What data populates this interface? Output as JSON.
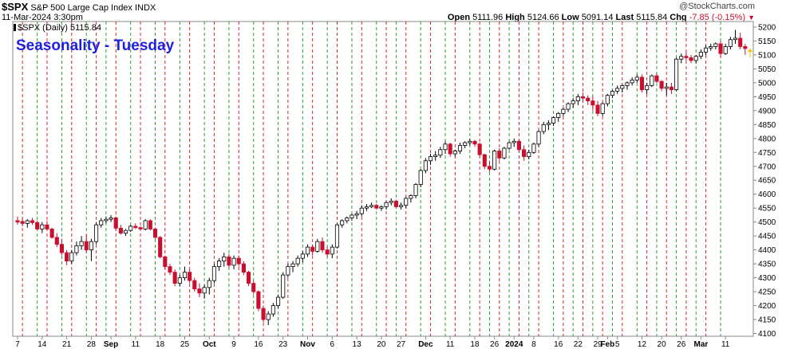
{
  "header": {
    "symbol": "$SPX",
    "name": "S&P 500 Large Cap Index",
    "exchange": "INDX",
    "date": "11-Mar-2024 3:30pm",
    "watermark": "@StockCharts.com",
    "open_label": "Open",
    "open": "5111.96",
    "high_label": "High",
    "high": "5124.66",
    "low_label": "Low",
    "low": "5091.14",
    "last_label": "Last",
    "last": "5115.84",
    "chg_label": "Chg",
    "chg": "-7.85 (-0.15%)"
  },
  "chart_data": {
    "type": "candlestick",
    "title": "Seasonality - Tuesday",
    "legend": "$SPX (Daily) 5115.84",
    "ylim": [
      4090,
      5220
    ],
    "yticks": [
      4100,
      4150,
      4200,
      4250,
      4300,
      4350,
      4400,
      4450,
      4500,
      4550,
      4600,
      4650,
      4700,
      4750,
      4800,
      4850,
      4900,
      4950,
      5000,
      5050,
      5100,
      5150,
      5200
    ],
    "xticks": [
      "7",
      "14",
      "21",
      "28",
      "Sep",
      "11",
      "18",
      "25",
      "Oct",
      "9",
      "16",
      "23",
      "Nov",
      "6",
      "13",
      "20",
      "27",
      "Dec",
      "11",
      "18",
      "26",
      "2024",
      "8",
      "16",
      "22",
      "29",
      "Feb",
      "5",
      "12",
      "20",
      "26",
      "Mar",
      "11"
    ],
    "xtick_day_index": [
      0,
      5,
      10,
      15,
      19,
      24,
      29,
      34,
      39,
      44,
      49,
      54,
      59,
      64,
      69,
      74,
      78,
      83,
      88,
      93,
      97,
      101,
      105,
      110,
      114,
      118,
      120,
      122,
      127,
      131,
      135,
      139,
      144
    ],
    "vertical_markers": {
      "red_day_index": [
        1,
        6,
        11,
        16,
        20,
        25,
        30,
        35,
        40,
        45,
        50,
        55,
        60,
        65,
        70,
        75,
        79,
        84,
        89,
        94,
        98,
        102,
        106,
        111,
        115,
        119,
        123,
        128,
        132,
        136,
        140
      ],
      "green_day_index": [
        4,
        9,
        14,
        18,
        23,
        28,
        33,
        38,
        43,
        48,
        53,
        58,
        63,
        68,
        73,
        77,
        82,
        87,
        92,
        96,
        100,
        104,
        109,
        113,
        117,
        121,
        126,
        130,
        134,
        138,
        143
      ]
    },
    "ohlc": [
      [
        4505,
        4520,
        4490,
        4500
      ],
      [
        4502,
        4512,
        4485,
        4495
      ],
      [
        4495,
        4510,
        4480,
        4505
      ],
      [
        4505,
        4515,
        4490,
        4498
      ],
      [
        4498,
        4505,
        4470,
        4475
      ],
      [
        4475,
        4500,
        4460,
        4490
      ],
      [
        4490,
        4505,
        4470,
        4475
      ],
      [
        4475,
        4480,
        4440,
        4445
      ],
      [
        4445,
        4460,
        4410,
        4420
      ],
      [
        4420,
        4440,
        4380,
        4390
      ],
      [
        4390,
        4400,
        4345,
        4360
      ],
      [
        4360,
        4400,
        4350,
        4390
      ],
      [
        4390,
        4430,
        4380,
        4415
      ],
      [
        4415,
        4450,
        4400,
        4430
      ],
      [
        4430,
        4455,
        4390,
        4400
      ],
      [
        4400,
        4440,
        4360,
        4430
      ],
      [
        4430,
        4500,
        4420,
        4490
      ],
      [
        4490,
        4515,
        4480,
        4505
      ],
      [
        4505,
        4520,
        4495,
        4510
      ],
      [
        4510,
        4525,
        4500,
        4515
      ],
      [
        4515,
        4520,
        4470,
        4478
      ],
      [
        4478,
        4490,
        4455,
        4460
      ],
      [
        4460,
        4475,
        4450,
        4470
      ],
      [
        4470,
        4490,
        4465,
        4485
      ],
      [
        4485,
        4495,
        4475,
        4480
      ],
      [
        4480,
        4485,
        4470,
        4475
      ],
      [
        4475,
        4510,
        4470,
        4505
      ],
      [
        4505,
        4510,
        4470,
        4475
      ],
      [
        4475,
        4480,
        4440,
        4445
      ],
      [
        4445,
        4450,
        4370,
        4375
      ],
      [
        4375,
        4380,
        4330,
        4340
      ],
      [
        4340,
        4350,
        4310,
        4320
      ],
      [
        4320,
        4330,
        4270,
        4280
      ],
      [
        4280,
        4310,
        4270,
        4300
      ],
      [
        4300,
        4340,
        4290,
        4320
      ],
      [
        4320,
        4330,
        4280,
        4290
      ],
      [
        4290,
        4300,
        4250,
        4260
      ],
      [
        4260,
        4280,
        4230,
        4245
      ],
      [
        4245,
        4275,
        4225,
        4265
      ],
      [
        4265,
        4300,
        4240,
        4290
      ],
      [
        4290,
        4350,
        4280,
        4340
      ],
      [
        4340,
        4370,
        4325,
        4360
      ],
      [
        4360,
        4390,
        4340,
        4375
      ],
      [
        4375,
        4385,
        4335,
        4345
      ],
      [
        4345,
        4380,
        4330,
        4370
      ],
      [
        4370,
        4380,
        4340,
        4350
      ],
      [
        4350,
        4360,
        4310,
        4320
      ],
      [
        4320,
        4325,
        4270,
        4280
      ],
      [
        4280,
        4290,
        4240,
        4250
      ],
      [
        4250,
        4255,
        4180,
        4190
      ],
      [
        4190,
        4200,
        4140,
        4150
      ],
      [
        4150,
        4180,
        4130,
        4170
      ],
      [
        4170,
        4210,
        4160,
        4200
      ],
      [
        4200,
        4240,
        4190,
        4230
      ],
      [
        4230,
        4320,
        4225,
        4310
      ],
      [
        4310,
        4350,
        4300,
        4340
      ],
      [
        4340,
        4360,
        4320,
        4350
      ],
      [
        4350,
        4380,
        4340,
        4370
      ],
      [
        4370,
        4395,
        4355,
        4385
      ],
      [
        4385,
        4420,
        4375,
        4410
      ],
      [
        4410,
        4420,
        4380,
        4395
      ],
      [
        4395,
        4440,
        4390,
        4430
      ],
      [
        4430,
        4445,
        4390,
        4400
      ],
      [
        4400,
        4410,
        4375,
        4385
      ],
      [
        4385,
        4420,
        4370,
        4410
      ],
      [
        4410,
        4495,
        4405,
        4490
      ],
      [
        4490,
        4510,
        4480,
        4505
      ],
      [
        4505,
        4520,
        4495,
        4515
      ],
      [
        4515,
        4530,
        4505,
        4525
      ],
      [
        4525,
        4540,
        4510,
        4530
      ],
      [
        4530,
        4560,
        4520,
        4550
      ],
      [
        4550,
        4565,
        4540,
        4555
      ],
      [
        4555,
        4570,
        4550,
        4560
      ],
      [
        4560,
        4565,
        4545,
        4550
      ],
      [
        4550,
        4560,
        4540,
        4555
      ],
      [
        4555,
        4575,
        4545,
        4570
      ],
      [
        4570,
        4585,
        4560,
        4575
      ],
      [
        4575,
        4580,
        4550,
        4555
      ],
      [
        4555,
        4570,
        4545,
        4560
      ],
      [
        4560,
        4590,
        4550,
        4585
      ],
      [
        4585,
        4600,
        4570,
        4595
      ],
      [
        4595,
        4640,
        4585,
        4635
      ],
      [
        4635,
        4690,
        4625,
        4685
      ],
      [
        4685,
        4730,
        4675,
        4720
      ],
      [
        4720,
        4745,
        4705,
        4735
      ],
      [
        4735,
        4755,
        4720,
        4740
      ],
      [
        4740,
        4770,
        4730,
        4760
      ],
      [
        4760,
        4790,
        4745,
        4780
      ],
      [
        4780,
        4785,
        4735,
        4745
      ],
      [
        4745,
        4760,
        4735,
        4755
      ],
      [
        4755,
        4785,
        4745,
        4775
      ],
      [
        4775,
        4790,
        4765,
        4785
      ],
      [
        4785,
        4800,
        4775,
        4790
      ],
      [
        4790,
        4795,
        4770,
        4780
      ],
      [
        4780,
        4785,
        4735,
        4742
      ],
      [
        4742,
        4745,
        4690,
        4700
      ],
      [
        4700,
        4720,
        4680,
        4690
      ],
      [
        4690,
        4760,
        4685,
        4755
      ],
      [
        4755,
        4765,
        4720,
        4730
      ],
      [
        4730,
        4770,
        4725,
        4765
      ],
      [
        4765,
        4790,
        4760,
        4785
      ],
      [
        4785,
        4800,
        4770,
        4790
      ],
      [
        4790,
        4795,
        4750,
        4760
      ],
      [
        4760,
        4775,
        4720,
        4735
      ],
      [
        4735,
        4760,
        4725,
        4750
      ],
      [
        4750,
        4785,
        4745,
        4780
      ],
      [
        4780,
        4830,
        4770,
        4825
      ],
      [
        4825,
        4860,
        4815,
        4850
      ],
      [
        4850,
        4865,
        4830,
        4855
      ],
      [
        4855,
        4880,
        4845,
        4875
      ],
      [
        4875,
        4895,
        4860,
        4890
      ],
      [
        4890,
        4910,
        4880,
        4905
      ],
      [
        4905,
        4930,
        4895,
        4925
      ],
      [
        4925,
        4945,
        4910,
        4935
      ],
      [
        4935,
        4960,
        4920,
        4950
      ],
      [
        4950,
        4965,
        4930,
        4945
      ],
      [
        4945,
        4955,
        4920,
        4935
      ],
      [
        4935,
        4950,
        4900,
        4920
      ],
      [
        4920,
        4935,
        4880,
        4890
      ],
      [
        4890,
        4930,
        4880,
        4925
      ],
      [
        4925,
        4960,
        4915,
        4955
      ],
      [
        4955,
        4975,
        4945,
        4970
      ],
      [
        4970,
        4990,
        4960,
        4980
      ],
      [
        4980,
        4995,
        4965,
        4990
      ],
      [
        4990,
        5005,
        4975,
        5000
      ],
      [
        5000,
        5020,
        4990,
        5010
      ],
      [
        5010,
        5030,
        5000,
        5020
      ],
      [
        5020,
        5030,
        4965,
        4975
      ],
      [
        4975,
        5000,
        4960,
        4990
      ],
      [
        4990,
        5030,
        4985,
        5025
      ],
      [
        5025,
        5035,
        5000,
        5005
      ],
      [
        5005,
        5010,
        4970,
        4980
      ],
      [
        4980,
        5000,
        4955,
        4985
      ],
      [
        4985,
        5000,
        4960,
        4975
      ],
      [
        4975,
        5090,
        4970,
        5085
      ],
      [
        5085,
        5105,
        5070,
        5095
      ],
      [
        5095,
        5110,
        5080,
        5090
      ],
      [
        5090,
        5100,
        5070,
        5080
      ],
      [
        5080,
        5100,
        5070,
        5095
      ],
      [
        5095,
        5120,
        5085,
        5110
      ],
      [
        5110,
        5135,
        5100,
        5125
      ],
      [
        5125,
        5140,
        5115,
        5130
      ],
      [
        5130,
        5145,
        5120,
        5140
      ],
      [
        5140,
        5150,
        5090,
        5105
      ],
      [
        5105,
        5140,
        5100,
        5130
      ],
      [
        5130,
        5165,
        5120,
        5155
      ],
      [
        5155,
        5190,
        5140,
        5160
      ],
      [
        5160,
        5180,
        5120,
        5130
      ],
      [
        5130,
        5140,
        5100,
        5123
      ],
      [
        5112,
        5125,
        5091,
        5116
      ]
    ],
    "colors": {
      "up_fill": "#ffffff",
      "up_stroke": "#000000",
      "down_fill": "#c8102e",
      "down_stroke": "#c8102e",
      "red_marker": "#d62728",
      "green_marker": "#2ca02c",
      "title": "#1f1fe0",
      "last": "#f2c200"
    }
  }
}
